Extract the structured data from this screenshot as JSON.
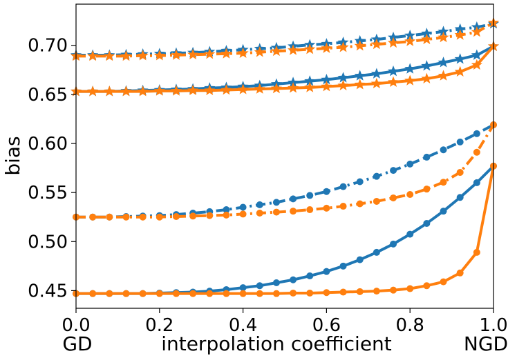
{
  "chart_data": {
    "type": "line",
    "title": "",
    "xlabel": "interpolation coefficient",
    "ylabel": "bias",
    "x_end_labels": {
      "left": "GD",
      "right": "NGD"
    },
    "xlim": [
      0.0,
      1.0
    ],
    "ylim": [
      0.432,
      0.742
    ],
    "xticks": [
      "0.0",
      "0.2",
      "0.4",
      "0.6",
      "0.8",
      "1.0"
    ],
    "yticks": [
      "0.45",
      "0.50",
      "0.55",
      "0.60",
      "0.65",
      "0.70"
    ],
    "grid": false,
    "legend": "none",
    "x": [
      0.0,
      0.04,
      0.08,
      0.12,
      0.16,
      0.2,
      0.24,
      0.28,
      0.32,
      0.36,
      0.4,
      0.44,
      0.48,
      0.52,
      0.56,
      0.6,
      0.64,
      0.68,
      0.72,
      0.76,
      0.8,
      0.84,
      0.88,
      0.92,
      0.96,
      1.0
    ],
    "series": [
      {
        "name": "blue star dash-dot",
        "color": "#1f77b4",
        "marker": "star",
        "linestyle": "dashdot",
        "values": [
          0.69,
          0.69,
          0.69,
          0.6905,
          0.691,
          0.6915,
          0.692,
          0.6925,
          0.6935,
          0.6945,
          0.6955,
          0.6965,
          0.6975,
          0.699,
          0.7005,
          0.7015,
          0.703,
          0.7045,
          0.706,
          0.708,
          0.71,
          0.712,
          0.714,
          0.7165,
          0.7185,
          0.722
        ]
      },
      {
        "name": "orange star dash-dot",
        "color": "#ff7f0e",
        "marker": "star",
        "linestyle": "dashdot",
        "values": [
          0.689,
          0.689,
          0.689,
          0.689,
          0.6895,
          0.6895,
          0.69,
          0.6905,
          0.691,
          0.6915,
          0.692,
          0.693,
          0.694,
          0.695,
          0.696,
          0.697,
          0.698,
          0.6995,
          0.701,
          0.7025,
          0.704,
          0.706,
          0.708,
          0.7105,
          0.7135,
          0.723
        ]
      },
      {
        "name": "blue star solid",
        "color": "#1f77b4",
        "marker": "star",
        "linestyle": "solid",
        "values": [
          0.653,
          0.653,
          0.653,
          0.6535,
          0.654,
          0.6545,
          0.655,
          0.6555,
          0.6565,
          0.657,
          0.658,
          0.659,
          0.6605,
          0.662,
          0.6635,
          0.665,
          0.667,
          0.669,
          0.671,
          0.6735,
          0.676,
          0.679,
          0.6825,
          0.686,
          0.69,
          0.699
        ]
      },
      {
        "name": "orange star solid",
        "color": "#ff7f0e",
        "marker": "star",
        "linestyle": "solid",
        "values": [
          0.653,
          0.653,
          0.653,
          0.653,
          0.653,
          0.6535,
          0.6535,
          0.654,
          0.654,
          0.6545,
          0.655,
          0.6555,
          0.656,
          0.6565,
          0.657,
          0.658,
          0.659,
          0.66,
          0.661,
          0.6625,
          0.664,
          0.666,
          0.669,
          0.673,
          0.68,
          0.699
        ]
      },
      {
        "name": "blue circle dash-dot",
        "color": "#1f77b4",
        "marker": "circle",
        "linestyle": "dashdot",
        "values": [
          0.525,
          0.525,
          0.525,
          0.5255,
          0.526,
          0.5265,
          0.5275,
          0.529,
          0.5305,
          0.5325,
          0.535,
          0.5375,
          0.54,
          0.5435,
          0.547,
          0.551,
          0.556,
          0.561,
          0.5665,
          0.5725,
          0.579,
          0.586,
          0.5935,
          0.6015,
          0.61,
          0.619
        ]
      },
      {
        "name": "orange circle dash-dot",
        "color": "#ff7f0e",
        "marker": "circle",
        "linestyle": "dashdot",
        "values": [
          0.525,
          0.525,
          0.525,
          0.525,
          0.525,
          0.525,
          0.5255,
          0.526,
          0.5265,
          0.527,
          0.528,
          0.529,
          0.53,
          0.531,
          0.5325,
          0.534,
          0.536,
          0.5385,
          0.541,
          0.5445,
          0.548,
          0.5535,
          0.5605,
          0.5705,
          0.591,
          0.619
        ]
      },
      {
        "name": "blue circle solid",
        "color": "#1f77b4",
        "marker": "circle",
        "linestyle": "solid",
        "values": [
          0.447,
          0.447,
          0.447,
          0.447,
          0.447,
          0.4475,
          0.448,
          0.4485,
          0.4495,
          0.451,
          0.453,
          0.455,
          0.458,
          0.461,
          0.465,
          0.4695,
          0.475,
          0.4815,
          0.489,
          0.4975,
          0.5075,
          0.5185,
          0.531,
          0.545,
          0.56,
          0.577
        ]
      },
      {
        "name": "orange circle solid",
        "color": "#ff7f0e",
        "marker": "circle",
        "linestyle": "solid",
        "values": [
          0.447,
          0.447,
          0.447,
          0.447,
          0.447,
          0.447,
          0.447,
          0.447,
          0.447,
          0.447,
          0.447,
          0.447,
          0.447,
          0.4475,
          0.4475,
          0.448,
          0.4485,
          0.449,
          0.4495,
          0.4505,
          0.452,
          0.455,
          0.459,
          0.468,
          0.489,
          0.577
        ]
      }
    ]
  }
}
